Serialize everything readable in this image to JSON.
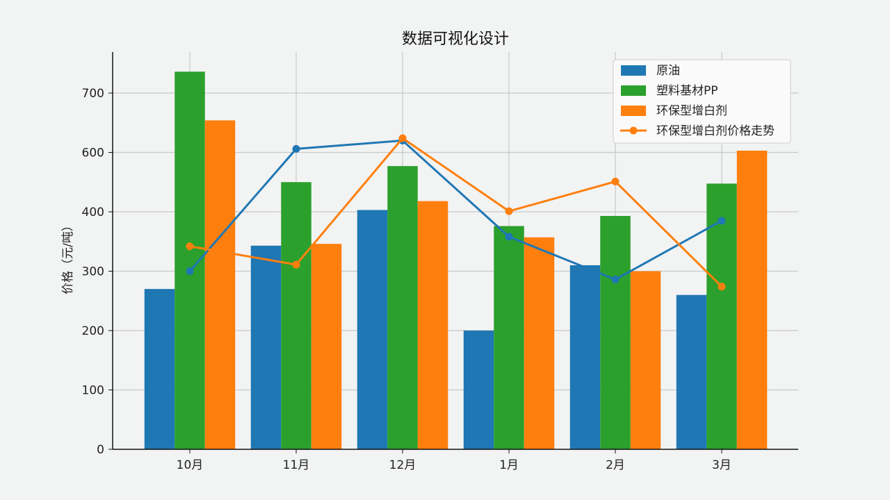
{
  "chart_data": {
    "type": "bar",
    "title": "数据可视化设计",
    "xlabel": "",
    "ylabel": "价格（元/吨）",
    "categories": [
      "10月",
      "11月",
      "12月",
      "1月",
      "2月",
      "3月"
    ],
    "yticks": [
      0,
      100,
      200,
      300,
      400,
      600,
      700
    ],
    "grid": true,
    "legend_position": "top-right",
    "series": [
      {
        "name": "原油",
        "kind": "bar",
        "color": "#1f77b4",
        "values": [
          270,
          343,
          406,
          200,
          310,
          260
        ]
      },
      {
        "name": "塑料基材PP",
        "kind": "bar",
        "color": "#2ca02c",
        "values": [
          736,
          500,
          554,
          376,
          393,
          495
        ]
      },
      {
        "name": "环保型增白剂",
        "kind": "bar",
        "color": "#ff7f0e",
        "values": [
          654,
          346,
          436,
          357,
          300,
          603
        ]
      },
      {
        "kind": "line",
        "color": "#1f77b4",
        "values": [
          300,
          606,
          620,
          358,
          286,
          385
        ]
      },
      {
        "name": "环保型增白剂价格走势",
        "kind": "line",
        "color": "#ff7f0e",
        "values": [
          342,
          311,
          624,
          402,
          502,
          274
        ]
      }
    ]
  }
}
